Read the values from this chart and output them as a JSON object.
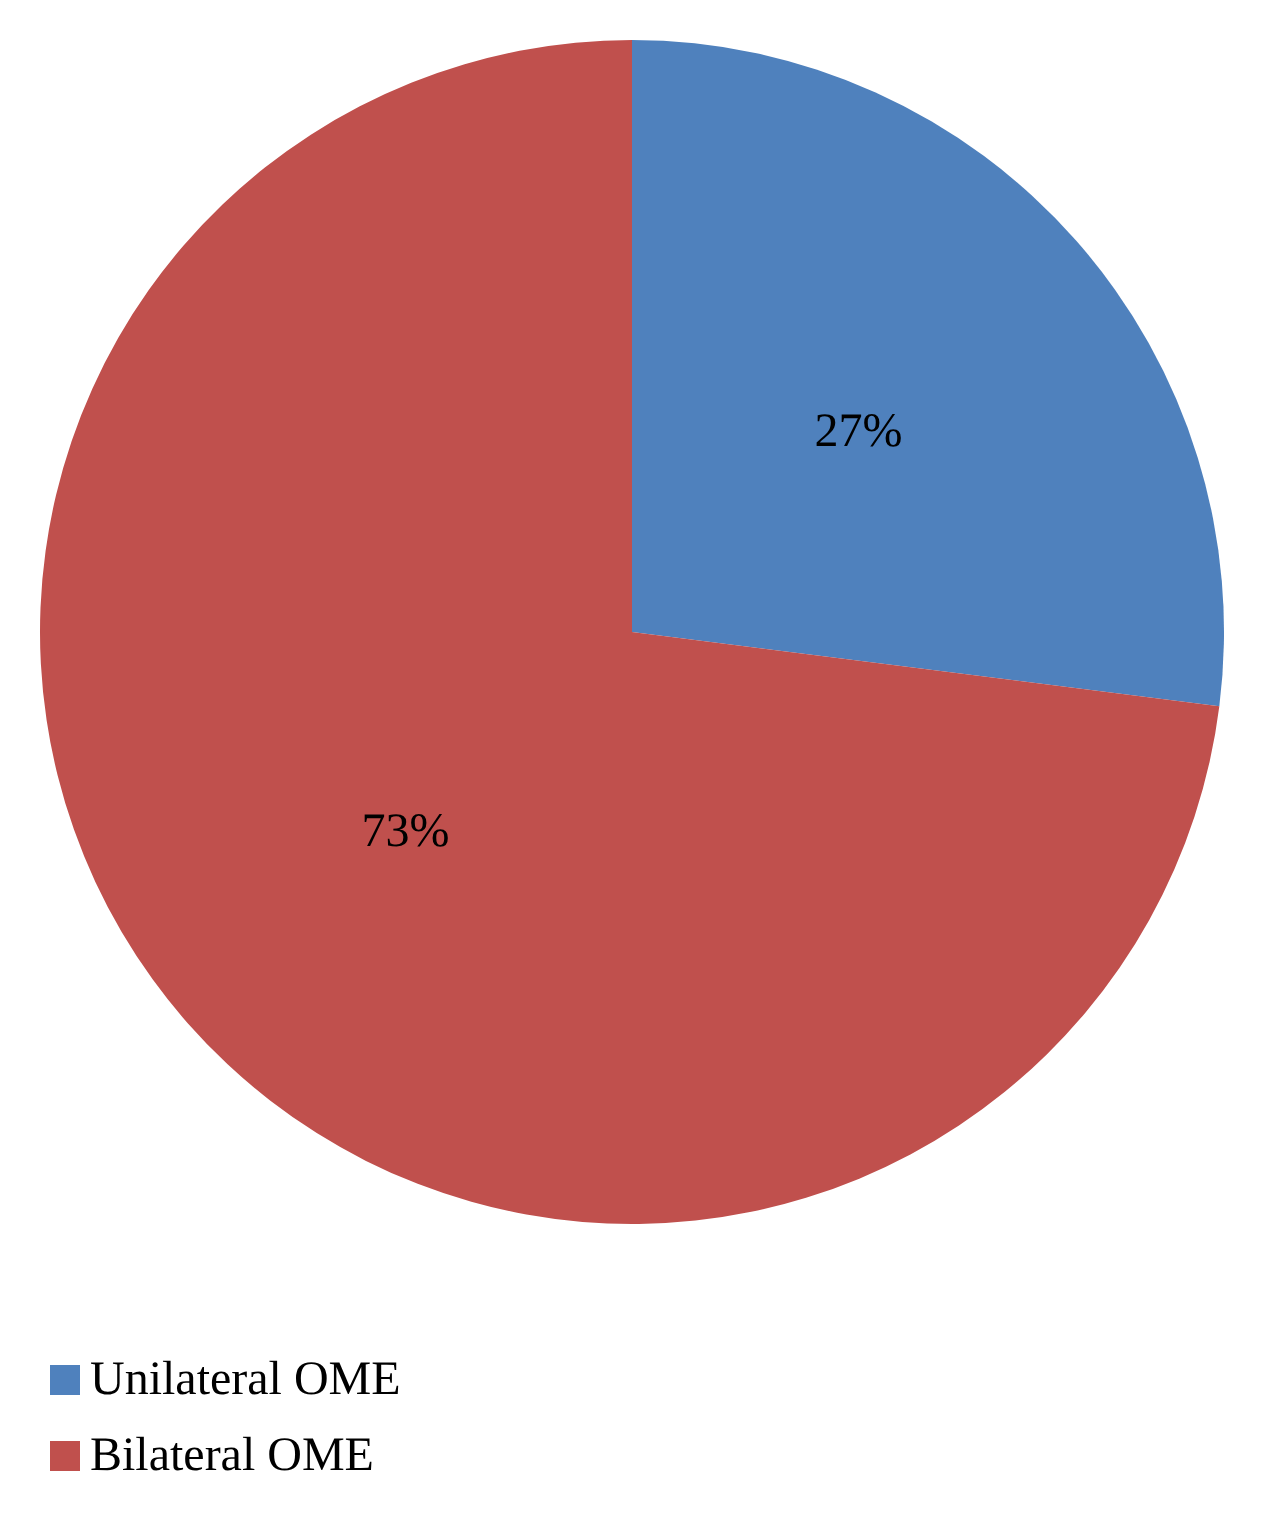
{
  "chart_data": {
    "type": "pie",
    "categories": [
      "Unilateral OME",
      "Bilateral OME"
    ],
    "values": [
      27,
      73
    ],
    "colors": [
      "#4f81bd",
      "#c0504d"
    ],
    "value_labels": [
      "27%",
      "73%"
    ],
    "legend": "bottom left"
  }
}
